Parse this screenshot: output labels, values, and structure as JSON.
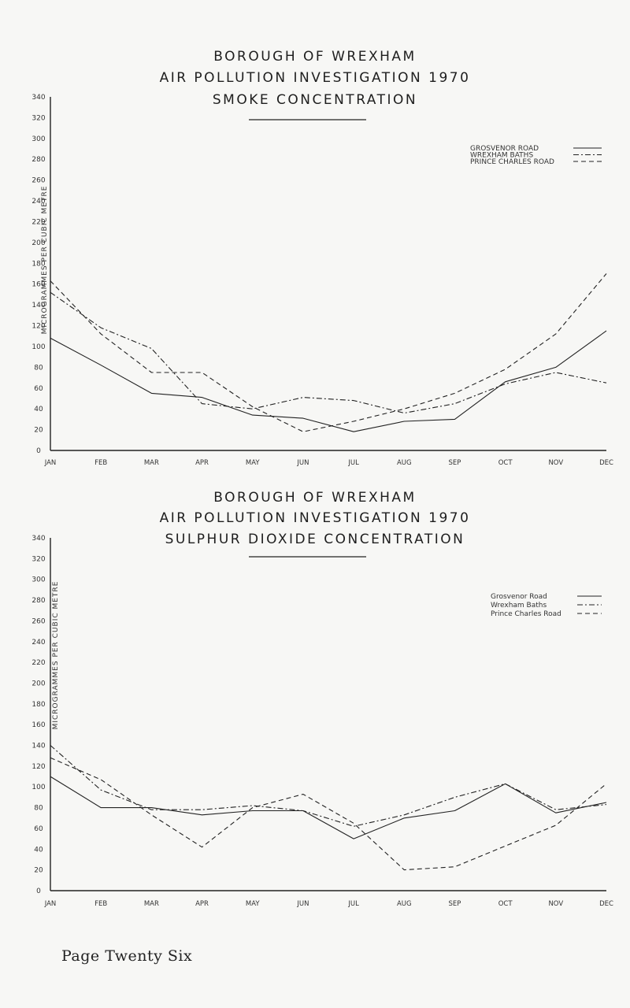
{
  "footer": "Page Twenty Six",
  "chart_data": [
    {
      "type": "line",
      "title_lines": [
        "BOROUGH OF WREXHAM",
        "AIR POLLUTION INVESTIGATION 1970",
        "SMOKE CONCENTRATION"
      ],
      "ylabel": "MICROGRAMMES PER CUBIC METRE",
      "xlabel": "",
      "categories": [
        "JAN",
        "FEB",
        "MAR",
        "APR",
        "MAY",
        "JUN",
        "JUL",
        "AUG",
        "SEP",
        "OCT",
        "NOV",
        "DEC"
      ],
      "yticks": [
        0,
        20,
        40,
        60,
        80,
        100,
        120,
        140,
        160,
        180,
        200,
        220,
        240,
        260,
        280,
        300,
        320,
        340
      ],
      "ytick_labels": [
        "0",
        "20",
        "40",
        "60",
        "80",
        "100",
        "120",
        "140",
        "160",
        "180",
        "200",
        "220",
        "240",
        "260",
        "280",
        "300",
        "320",
        "340"
      ],
      "ylim": [
        0,
        340
      ],
      "grid": false,
      "legend_position": "top-right",
      "series": [
        {
          "name": "GROSVENOR ROAD",
          "dash": "solid",
          "x": [
            0,
            1,
            2,
            3,
            4,
            5,
            6,
            7,
            8,
            9,
            10,
            11
          ],
          "values": [
            108,
            82,
            55,
            51,
            34,
            31,
            18,
            28,
            30,
            66,
            80,
            115
          ]
        },
        {
          "name": "WREXHAM BATHS",
          "dash": "dashdot",
          "x": [
            0,
            1,
            2,
            3,
            4,
            5,
            6,
            7,
            8,
            9,
            10,
            11
          ],
          "values": [
            152,
            118,
            98,
            45,
            40,
            51,
            48,
            36,
            45,
            64,
            75,
            65
          ]
        },
        {
          "name": "PRINCE CHARLES ROAD",
          "dash": "dashed",
          "x": [
            0,
            1,
            2,
            3,
            4,
            5,
            6,
            7,
            8,
            9,
            10,
            11
          ],
          "values": [
            163,
            112,
            75,
            75,
            42,
            18,
            28,
            40,
            55,
            78,
            112,
            170
          ]
        }
      ]
    },
    {
      "type": "line",
      "title_lines": [
        "BOROUGH OF WREXHAM",
        "AIR POLLUTION INVESTIGATION 1970",
        "SULPHUR DIOXIDE CONCENTRATION"
      ],
      "ylabel": "MICROGRAMMES PER CUBIC METRE",
      "xlabel": "",
      "categories": [
        "JAN",
        "FEB",
        "MAR",
        "APR",
        "MAY",
        "JUN",
        "JUL",
        "AUG",
        "SEP",
        "OCT",
        "NOV",
        "DEC"
      ],
      "yticks": [
        0,
        20,
        40,
        60,
        80,
        100,
        120,
        140,
        160,
        180,
        200,
        220,
        240,
        260,
        280,
        300,
        320,
        340
      ],
      "ytick_labels": [
        "0",
        "20",
        "40",
        "60",
        "80",
        "100",
        "120",
        "140",
        "160",
        "180",
        "200",
        "220",
        "240",
        "260",
        "280",
        "300",
        "320",
        "340"
      ],
      "ylim": [
        0,
        340
      ],
      "grid": false,
      "legend_position": "top-right",
      "series": [
        {
          "name": "Grosvenor Road",
          "dash": "solid",
          "x": [
            0,
            1,
            2,
            3,
            4,
            5,
            6,
            7,
            8,
            9,
            10,
            11
          ],
          "values": [
            110,
            80,
            80,
            73,
            77,
            77,
            50,
            70,
            77,
            103,
            75,
            85
          ]
        },
        {
          "name": "Wrexham Baths",
          "dash": "dashdot",
          "x": [
            0,
            1,
            2,
            3,
            4,
            5,
            6,
            7,
            8,
            9,
            10,
            11
          ],
          "values": [
            140,
            97,
            78,
            78,
            82,
            77,
            62,
            73,
            90,
            103,
            78,
            83
          ]
        },
        {
          "name": "Prince Charles Road",
          "dash": "dashed",
          "x": [
            0,
            1,
            2,
            3,
            4,
            5,
            6,
            7,
            8,
            9,
            10,
            11
          ],
          "values": [
            128,
            107,
            73,
            42,
            80,
            93,
            65,
            20,
            23,
            43,
            63,
            103
          ]
        }
      ]
    }
  ]
}
